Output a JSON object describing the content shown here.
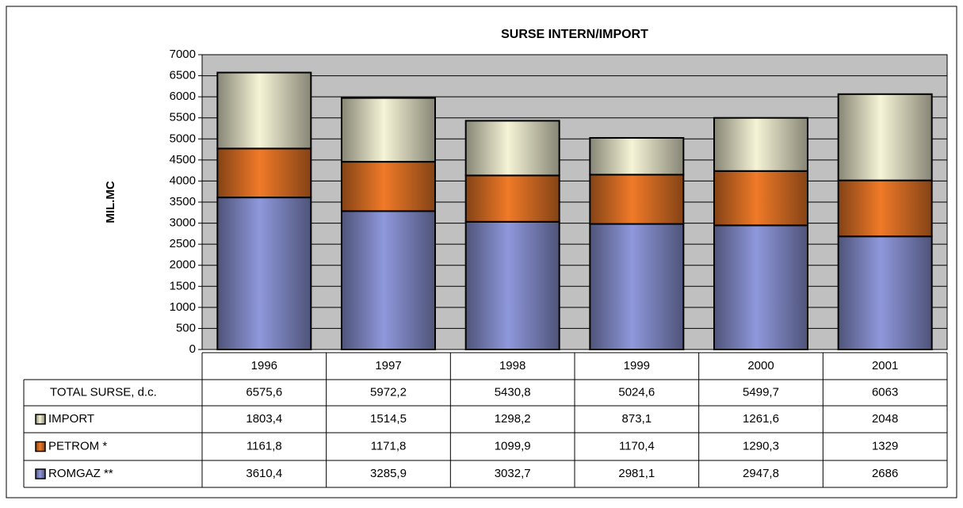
{
  "chart_data": {
    "type": "stacked_bar",
    "title": "SURSE INTERN/IMPORT",
    "y_label": "MIL.MC",
    "categories": [
      "1996",
      "1997",
      "1998",
      "1999",
      "2000",
      "2001"
    ],
    "series": [
      {
        "name": "ROMGAZ **",
        "color": "#8f98dc",
        "values": [
          3610.4,
          3285.9,
          3032.7,
          2981.1,
          2947.8,
          2686
        ],
        "value_labels": [
          "3610,4",
          "3285,9",
          "3032,7",
          "2981,1",
          "2947,8",
          "2686"
        ]
      },
      {
        "name": "PETROM *",
        "color": "#f07a28",
        "values": [
          1161.8,
          1171.8,
          1099.9,
          1170.4,
          1290.3,
          1329
        ],
        "value_labels": [
          "1161,8",
          "1171,8",
          "1099,9",
          "1170,4",
          "1290,3",
          "1329"
        ]
      },
      {
        "name": "IMPORT",
        "color": "#f6f4d6",
        "values": [
          1803.4,
          1514.5,
          1298.2,
          873.1,
          1261.6,
          2048
        ],
        "value_labels": [
          "1803,4",
          "1514,5",
          "1298,2",
          "873,1",
          "1261,6",
          "2048"
        ]
      }
    ],
    "total": {
      "name": "TOTAL SURSE, d.c.",
      "values": [
        6575.6,
        5972.2,
        5430.8,
        5024.6,
        5499.7,
        6063
      ],
      "value_labels": [
        "6575,6",
        "5972,2",
        "5430,8",
        "5024,6",
        "5499,7",
        "6063"
      ]
    },
    "ylim": [
      0,
      7000
    ],
    "yticks": [
      0,
      500,
      1000,
      1500,
      2000,
      2500,
      3000,
      3500,
      4000,
      4500,
      5000,
      5500,
      6000,
      6500,
      7000
    ],
    "grid": true,
    "plot_background": "#c0c0c0"
  }
}
